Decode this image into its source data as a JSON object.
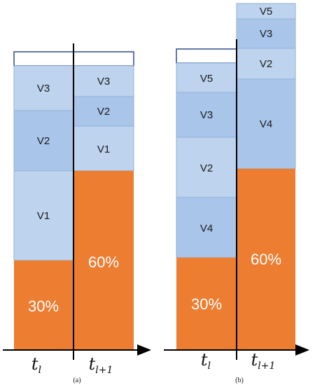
{
  "colors": {
    "orange": "#ED7D31",
    "blue_fill": "#BDD3EE",
    "blue_fill_alt": "#A9C5EA",
    "blue_stroke": "#8FB0D9",
    "frame": "#2F4A8A",
    "axis": "#000000"
  },
  "time_labels": {
    "tl_base": "t",
    "tl_sub": "l",
    "tl1_base": "t",
    "tl1_sub": "l+1"
  },
  "panel_a": {
    "caption": "(a)",
    "left": {
      "percent": "30%",
      "blocks": [
        "V1",
        "V2",
        "V3"
      ]
    },
    "right": {
      "percent": "60%",
      "blocks": [
        "V1",
        "V2",
        "V3"
      ]
    }
  },
  "panel_b": {
    "caption": "(b)",
    "left": {
      "percent": "30%",
      "blocks": [
        "V4",
        "V2",
        "V3",
        "V5"
      ]
    },
    "right": {
      "percent": "60%",
      "blocks": [
        "V4",
        "V2",
        "V3",
        "V5"
      ]
    }
  }
}
